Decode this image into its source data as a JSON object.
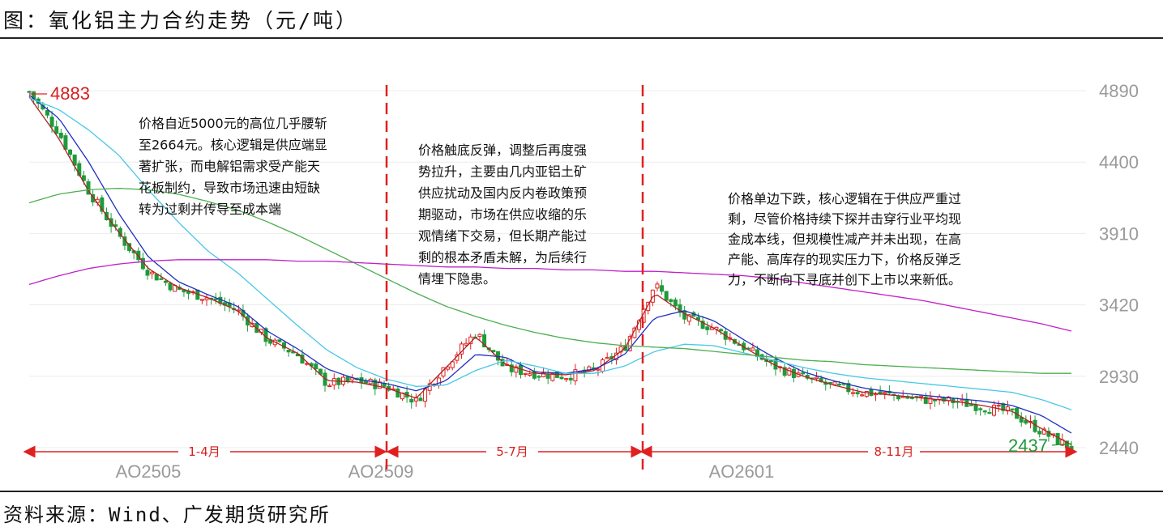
{
  "header": {
    "title": "图：氧化铝主力合约走势（元/吨）"
  },
  "footer": {
    "source": "资料来源：Wind、广发期货研究所"
  },
  "chart_data": {
    "type": "candlestick",
    "ylim": [
      2300,
      4950
    ],
    "yticks": [
      4890,
      4400,
      3910,
      3420,
      2930,
      2440
    ],
    "xticks": [
      "AO2505",
      "AO2509",
      "AO2601"
    ],
    "high_label": "4883",
    "low_label": "2437",
    "annotations": [
      {
        "lines": [
          "价格自近5000元的高位几乎腰斩",
          "至2664元。核心逻辑是供应端显",
          "著扩张，而电解铝需求受产能天",
          "花板制约，导致市场迅速由短缺",
          "转为过剩并传导至成本端"
        ]
      },
      {
        "lines": [
          "价格触底反弹，调整后再度强",
          "势拉升，主要由几内亚铝土矿",
          "供应扰动及国内反内卷政策预",
          "期驱动，市场在供应收缩的乐",
          "观情绪下交易，但长期产能过",
          "剩的根本矛盾未解，为后续行",
          "情埋下隐患。"
        ]
      },
      {
        "lines": [
          "价格单边下跌，核心逻辑在于供应严重过",
          "剩，尽管价格持续下探并击穿行业平均现",
          "金成本线，但规模性减产并未出现，在高",
          "产能、高库存的现实压力下，价格反弹乏",
          "力，不断向下寻底并创下上市以来新低。"
        ]
      }
    ],
    "periods": [
      "1-4月",
      "5-7月",
      "8-11月"
    ],
    "close_anchors": [
      4883,
      4600,
      4200,
      3900,
      3650,
      3520,
      3470,
      3380,
      3180,
      3080,
      2880,
      2900,
      2860,
      2760,
      3010,
      3230,
      2980,
      2950,
      2930,
      2970,
      3130,
      3560,
      3330,
      3260,
      3130,
      3000,
      2920,
      2860,
      2820,
      2800,
      2770,
      2760,
      2720,
      2680,
      2550,
      2437
    ],
    "series": [
      {
        "color": "#b22222",
        "values": [
          4850,
          4560,
          4200,
          3920,
          3670,
          3540,
          3470,
          3380,
          3190,
          3090,
          2900,
          2890,
          2850,
          2780,
          2990,
          3200,
          3010,
          2950,
          2940,
          2970,
          3120,
          3500,
          3360,
          3260,
          3130,
          3010,
          2930,
          2870,
          2820,
          2800,
          2780,
          2760,
          2730,
          2690,
          2570,
          2460
        ]
      },
      {
        "color": "#1f2fbf",
        "values": [
          4860,
          4700,
          4400,
          4050,
          3750,
          3580,
          3490,
          3410,
          3240,
          3120,
          2980,
          2910,
          2880,
          2830,
          2900,
          3080,
          3060,
          2960,
          2950,
          2980,
          3080,
          3330,
          3380,
          3310,
          3180,
          3060,
          2960,
          2900,
          2850,
          2820,
          2800,
          2780,
          2760,
          2730,
          2660,
          2540
        ]
      },
      {
        "color": "#46c8e6",
        "values": [
          4840,
          4760,
          4620,
          4450,
          4210,
          3990,
          3790,
          3640,
          3460,
          3280,
          3110,
          2990,
          2910,
          2860,
          2870,
          2970,
          3040,
          3000,
          2950,
          2950,
          3000,
          3100,
          3150,
          3140,
          3090,
          3040,
          2990,
          2950,
          2920,
          2900,
          2880,
          2860,
          2840,
          2820,
          2770,
          2700
        ]
      },
      {
        "color": "#4caf50",
        "values": [
          4120,
          4180,
          4210,
          4220,
          4210,
          4180,
          4130,
          4070,
          3990,
          3900,
          3800,
          3700,
          3600,
          3500,
          3410,
          3340,
          3280,
          3230,
          3190,
          3160,
          3140,
          3130,
          3120,
          3100,
          3080,
          3060,
          3040,
          3030,
          3010,
          3000,
          2990,
          2980,
          2970,
          2960,
          2950,
          2950
        ]
      },
      {
        "color": "#c020c8",
        "values": [
          3560,
          3620,
          3670,
          3700,
          3720,
          3730,
          3730,
          3730,
          3730,
          3720,
          3720,
          3710,
          3700,
          3690,
          3680,
          3680,
          3670,
          3670,
          3660,
          3660,
          3650,
          3650,
          3640,
          3630,
          3620,
          3600,
          3570,
          3540,
          3510,
          3480,
          3450,
          3410,
          3370,
          3330,
          3290,
          3240
        ]
      }
    ]
  }
}
